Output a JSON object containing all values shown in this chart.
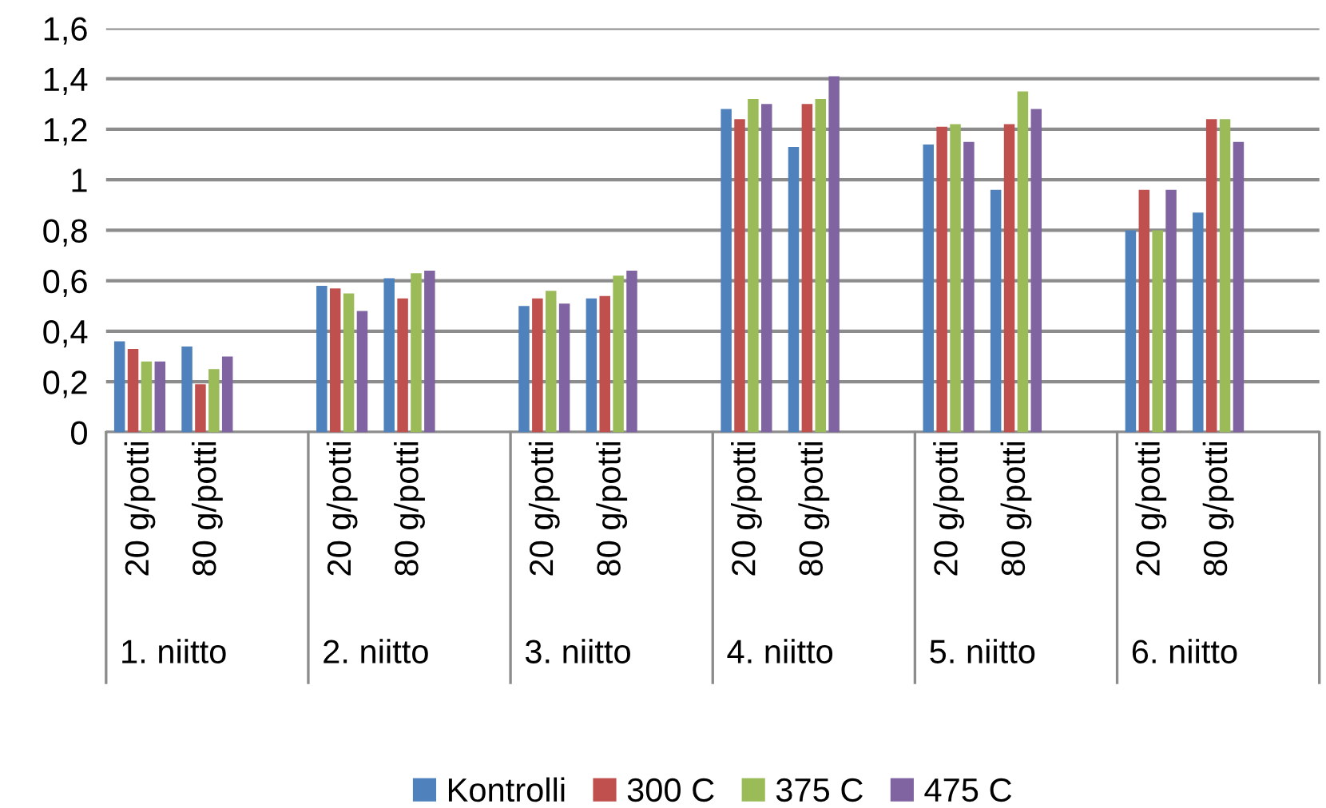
{
  "chart_data": {
    "type": "bar",
    "categories": [
      "20 g/potti",
      "80 g/potti",
      null,
      "20 g/potti",
      "80 g/potti",
      null,
      "20 g/potti",
      "80 g/potti",
      null,
      "20 g/potti",
      "80 g/potti",
      null,
      "20 g/potti",
      "80 g/potti",
      null,
      "20 g/potti",
      "80 g/potti",
      null
    ],
    "series": [
      {
        "name": "Kontrolli",
        "color": "#4f81bd",
        "values": [
          0.36,
          0.34,
          null,
          0.58,
          0.61,
          null,
          0.5,
          0.53,
          null,
          1.28,
          1.13,
          null,
          1.14,
          0.96,
          null,
          0.8,
          0.87,
          null
        ]
      },
      {
        "name": "300 C",
        "color": "#c0504d",
        "values": [
          0.33,
          0.19,
          null,
          0.57,
          0.53,
          null,
          0.53,
          0.54,
          null,
          1.24,
          1.3,
          null,
          1.21,
          1.22,
          null,
          0.96,
          1.24,
          null
        ]
      },
      {
        "name": "375 C",
        "color": "#9bbb59",
        "values": [
          0.28,
          0.25,
          null,
          0.55,
          0.63,
          null,
          0.56,
          0.62,
          null,
          1.32,
          1.32,
          null,
          1.22,
          1.35,
          null,
          0.8,
          1.24,
          null
        ]
      },
      {
        "name": "475 C",
        "color": "#8064a2",
        "values": [
          0.28,
          0.3,
          null,
          0.48,
          0.64,
          null,
          0.51,
          0.64,
          null,
          1.3,
          1.41,
          null,
          1.15,
          1.28,
          null,
          0.96,
          1.15,
          null
        ]
      }
    ],
    "annotations": [
      "1. niitto",
      "2. niitto",
      "3. niitto",
      "4. niitto",
      "5. niitto",
      "6. niitto"
    ],
    "ylim": [
      0,
      1.6
    ],
    "yticks": [
      0,
      {
        "value": 0.2,
        "label": "0,2"
      },
      {
        "value": 0.4,
        "label": "0,4"
      },
      {
        "value": 0.6,
        "label": "0,6"
      },
      {
        "value": 0.8,
        "label": "0,8"
      },
      1,
      {
        "value": 1.2,
        "label": "1,2"
      },
      {
        "value": 1.4,
        "label": "1,4"
      },
      {
        "value": 1.6,
        "label": "1,6"
      }
    ],
    "grid": "y",
    "legend": "bottom"
  }
}
